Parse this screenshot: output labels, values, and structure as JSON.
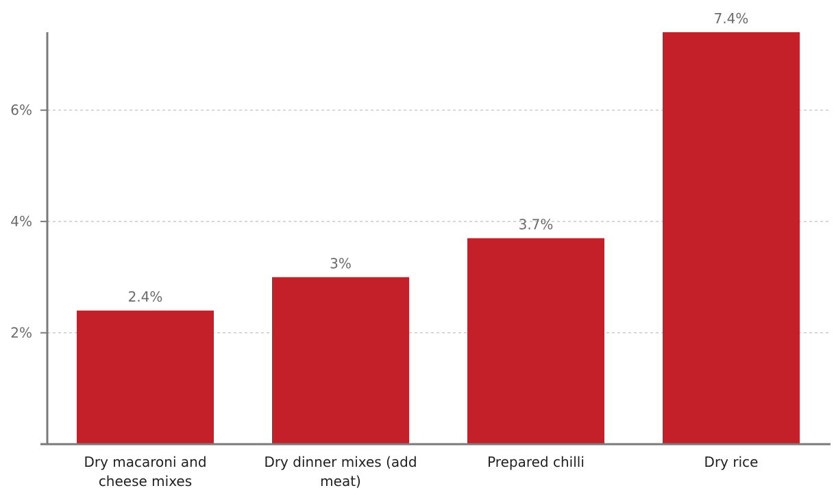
{
  "chart_data": {
    "type": "bar",
    "title": "",
    "xlabel": "",
    "ylabel": "",
    "categories": [
      [
        "Dry macaroni and",
        "cheese mixes"
      ],
      [
        "Dry dinner mixes (add",
        "meat)"
      ],
      [
        "Prepared chilli"
      ],
      [
        "Dry rice"
      ]
    ],
    "values": [
      2.4,
      3,
      3.7,
      7.4
    ],
    "data_labels": [
      "2.4%",
      "3%",
      "3.7%",
      "7.4%"
    ],
    "ylim": [
      0,
      7.4
    ],
    "y_ticks": [
      2,
      4,
      6
    ],
    "y_tick_labels": [
      "2%",
      "4%",
      "6%"
    ],
    "grid": true,
    "bar_color": "#c4202a",
    "grid_color": "#bdbdbd",
    "axis_color": "#7a7a7a"
  }
}
